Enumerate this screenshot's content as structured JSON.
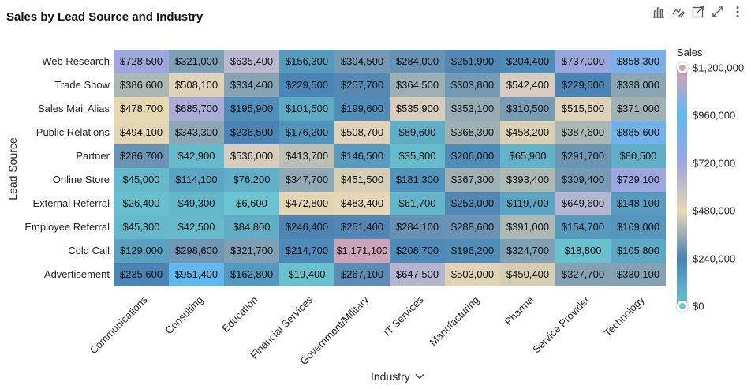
{
  "chart": {
    "title": "Sales by Lead Source and Industry"
  },
  "toolbar": {
    "icons": [
      "bar-chart-icon",
      "chart-settings-icon",
      "open-external-icon",
      "expand-icon",
      "more-options-icon"
    ]
  },
  "chart_data": {
    "type": "heatmap",
    "title": "Sales by Lead Source and Industry",
    "xlabel": "Industry",
    "ylabel": "Lead Source",
    "x_categories": [
      "Communications",
      "Consulting",
      "Education",
      "Financial Services",
      "Government/Military",
      "IT Services",
      "Manufacturing",
      "Pharma",
      "Service Provider",
      "Technology"
    ],
    "y_categories": [
      "Web Research",
      "Trade Show",
      "Sales Mail Alias",
      "Public Relations",
      "Partner",
      "Online Store",
      "External Referral",
      "Employee Referral",
      "Cold Call",
      "Advertisement"
    ],
    "values": [
      [
        728500,
        321000,
        635400,
        156300,
        304500,
        284000,
        251900,
        204400,
        737000,
        858300
      ],
      [
        386600,
        508100,
        334400,
        229500,
        257700,
        364500,
        303800,
        542400,
        229500,
        338000
      ],
      [
        478700,
        685700,
        195900,
        101500,
        199600,
        535900,
        353100,
        310500,
        515500,
        371000
      ],
      [
        494100,
        343300,
        236500,
        176200,
        508700,
        89600,
        368300,
        458200,
        387600,
        885600
      ],
      [
        286700,
        42900,
        536000,
        413700,
        146500,
        35300,
        206000,
        65900,
        291700,
        80500
      ],
      [
        45000,
        114100,
        76200,
        347700,
        451500,
        181300,
        367300,
        393400,
        309400,
        729100
      ],
      [
        26400,
        49300,
        6600,
        472800,
        483400,
        61700,
        253000,
        119700,
        649600,
        148100
      ],
      [
        45300,
        42500,
        84800,
        246400,
        251400,
        284100,
        288600,
        391000,
        154700,
        169000
      ],
      [
        129000,
        298600,
        321700,
        214700,
        1171100,
        208700,
        196200,
        324700,
        18800,
        105800
      ],
      [
        235600,
        951400,
        162800,
        19400,
        267100,
        647500,
        503000,
        450400,
        327700,
        330100
      ]
    ],
    "value_labels": [
      [
        "$728,500",
        "$321,000",
        "$635,400",
        "$156,300",
        "$304,500",
        "$284,000",
        "$251,900",
        "$204,400",
        "$737,000",
        "$858,300"
      ],
      [
        "$386,600",
        "$508,100",
        "$334,400",
        "$229,500",
        "$257,700",
        "$364,500",
        "$303,800",
        "$542,400",
        "$229,500",
        "$338,000"
      ],
      [
        "$478,700",
        "$685,700",
        "$195,900",
        "$101,500",
        "$199,600",
        "$535,900",
        "$353,100",
        "$310,500",
        "$515,500",
        "$371,000"
      ],
      [
        "$494,100",
        "$343,300",
        "$236,500",
        "$176,200",
        "$508,700",
        "$89,600",
        "$368,300",
        "$458,200",
        "$387,600",
        "$885,600"
      ],
      [
        "$286,700",
        "$42,900",
        "$536,000",
        "$413,700",
        "$146,500",
        "$35,300",
        "$206,000",
        "$65,900",
        "$291,700",
        "$80,500"
      ],
      [
        "$45,000",
        "$114,100",
        "$76,200",
        "$347,700",
        "$451,500",
        "$181,300",
        "$367,300",
        "$393,400",
        "$309,400",
        "$729,100"
      ],
      [
        "$26,400",
        "$49,300",
        "$6,600",
        "$472,800",
        "$483,400",
        "$61,700",
        "$253,000",
        "$119,700",
        "$649,600",
        "$148,100"
      ],
      [
        "$45,300",
        "$42,500",
        "$84,800",
        "$246,400",
        "$251,400",
        "$284,100",
        "$288,600",
        "$391,000",
        "$154,700",
        "$169,000"
      ],
      [
        "$129,000",
        "$298,600",
        "$321,700",
        "$214,700",
        "$1,171,100",
        "$208,700",
        "$196,200",
        "$324,700",
        "$18,800",
        "$105,800"
      ],
      [
        "$235,600",
        "$951,400",
        "$162,800",
        "$19,400",
        "$267,100",
        "$647,500",
        "$503,000",
        "$450,400",
        "$327,700",
        "$330,100"
      ]
    ],
    "legend": {
      "title": "Sales",
      "placement": "right",
      "range": [
        0,
        1200000
      ],
      "ticks": [
        {
          "value": 1200000,
          "label": "$1,200,000"
        },
        {
          "value": 960000,
          "label": "$960,000"
        },
        {
          "value": 720000,
          "label": "$720,000"
        },
        {
          "value": 480000,
          "label": "$480,000"
        },
        {
          "value": 240000,
          "label": "$240,000"
        },
        {
          "value": 0,
          "label": "$0"
        }
      ],
      "color_stops": [
        {
          "value": 0,
          "color": "#6cc6d0"
        },
        {
          "value": 240000,
          "color": "#4a82b4"
        },
        {
          "value": 480000,
          "color": "#e8d8b4"
        },
        {
          "value": 720000,
          "color": "#9fa6dc"
        },
        {
          "value": 960000,
          "color": "#5fb8ef"
        },
        {
          "value": 1200000,
          "color": "#dba0b0"
        }
      ]
    }
  }
}
